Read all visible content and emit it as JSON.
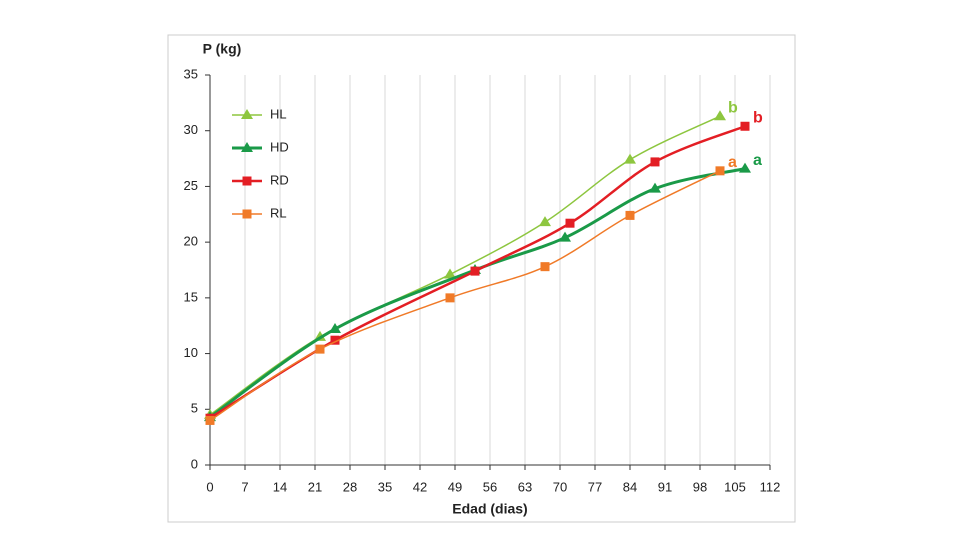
{
  "chart_data": {
    "type": "line",
    "y_label": "P (kg)",
    "x_label": "Edad (dias)",
    "xlim": [
      0,
      112
    ],
    "xticks": [
      0,
      7,
      14,
      21,
      28,
      35,
      42,
      49,
      56,
      63,
      70,
      77,
      84,
      91,
      98,
      105,
      112
    ],
    "ylim": [
      0,
      35
    ],
    "yticks": [
      0,
      5,
      10,
      15,
      20,
      25,
      30,
      35
    ],
    "grid": "x",
    "legend": "upper left",
    "series": [
      {
        "name": "HL",
        "color": "#8dc63f",
        "marker": "triangle",
        "line_width": 1.5,
        "end_label": "b",
        "x": [
          0,
          22,
          48,
          67,
          84,
          102
        ],
        "values": [
          4.5,
          11.5,
          17.1,
          21.8,
          27.4,
          31.3
        ]
      },
      {
        "name": "HD",
        "color": "#1a9a48",
        "marker": "triangle",
        "line_width": 3,
        "end_label": "a",
        "x": [
          0,
          25,
          53,
          71,
          89,
          107
        ],
        "values": [
          4.3,
          12.2,
          17.5,
          20.4,
          24.8,
          26.6
        ]
      },
      {
        "name": "RD",
        "color": "#e31e24",
        "marker": "square",
        "line_width": 2.5,
        "end_label": "b",
        "x": [
          0,
          25,
          53,
          72,
          89,
          107
        ],
        "values": [
          4.2,
          11.2,
          17.4,
          21.7,
          27.2,
          30.4
        ]
      },
      {
        "name": "RL",
        "color": "#f07a28",
        "marker": "square",
        "line_width": 1.5,
        "end_label": "a",
        "x": [
          0,
          22,
          48,
          67,
          84,
          102
        ],
        "values": [
          4.0,
          10.4,
          15.0,
          17.8,
          22.4,
          26.4
        ]
      }
    ]
  }
}
